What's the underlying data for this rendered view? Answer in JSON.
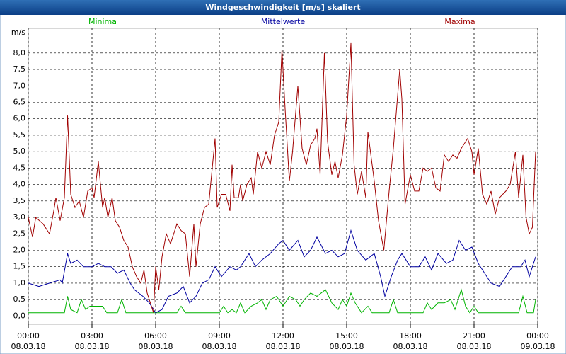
{
  "chart_data": {
    "type": "line",
    "title": "Windgeschwindigkeit [m/s] skaliert",
    "y_unit": "m/s",
    "xlim": [
      0,
      24
    ],
    "xticks": [
      {
        "value": 0,
        "label": "00:00",
        "date": "08.03.18"
      },
      {
        "value": 3,
        "label": "03:00",
        "date": "08.03.18"
      },
      {
        "value": 6,
        "label": "06:00",
        "date": "08.03.18"
      },
      {
        "value": 9,
        "label": "09:00",
        "date": "08.03.18"
      },
      {
        "value": 12,
        "label": "12:00",
        "date": "08.03.18"
      },
      {
        "value": 15,
        "label": "15:00",
        "date": "08.03.18"
      },
      {
        "value": 18,
        "label": "18:00",
        "date": "08.03.18"
      },
      {
        "value": 21,
        "label": "21:00",
        "date": "08.03.18"
      },
      {
        "value": 24,
        "label": "00:00",
        "date": "09.03.18"
      }
    ],
    "ylim": [
      -0.25,
      8.75
    ],
    "yticks": [
      {
        "value": 0,
        "label": "0,0"
      },
      {
        "value": 0.5,
        "label": "0,5"
      },
      {
        "value": 1,
        "label": "1,0"
      },
      {
        "value": 1.5,
        "label": "1,5"
      },
      {
        "value": 2,
        "label": "2,0"
      },
      {
        "value": 2.5,
        "label": "2,5"
      },
      {
        "value": 3,
        "label": "3,0"
      },
      {
        "value": 3.5,
        "label": "3,5"
      },
      {
        "value": 4,
        "label": "4,0"
      },
      {
        "value": 4.5,
        "label": "4,5"
      },
      {
        "value": 5,
        "label": "5,0"
      },
      {
        "value": 5.5,
        "label": "5,5"
      },
      {
        "value": 6,
        "label": "6,0"
      },
      {
        "value": 6.5,
        "label": "6,5"
      },
      {
        "value": 7,
        "label": "7,0"
      },
      {
        "value": 7.5,
        "label": "7,5"
      },
      {
        "value": 8,
        "label": "8,0"
      }
    ],
    "grid": true,
    "series": [
      {
        "name": "Minima",
        "color": "#00b400",
        "x": [
          0,
          1.7,
          1.85,
          2.0,
          2.3,
          2.5,
          2.7,
          2.9,
          3.5,
          3.7,
          4.2,
          4.4,
          4.6,
          7.0,
          7.2,
          7.4,
          9.0,
          9.2,
          9.4,
          9.6,
          9.8,
          10.0,
          10.2,
          10.5,
          10.8,
          11.0,
          11.2,
          11.4,
          11.7,
          12.0,
          12.3,
          12.6,
          12.8,
          13.0,
          13.3,
          13.6,
          14.0,
          14.3,
          14.6,
          14.8,
          15.0,
          15.2,
          15.4,
          15.7,
          16.0,
          16.2,
          17.0,
          17.2,
          17.4,
          18.6,
          18.8,
          19.0,
          19.3,
          19.6,
          19.9,
          20.1,
          20.4,
          20.6,
          20.8,
          21.0,
          21.2,
          23.1,
          23.3,
          23.5,
          23.8,
          23.9
        ],
        "values": [
          0.1,
          0.1,
          0.6,
          0.2,
          0.1,
          0.5,
          0.2,
          0.3,
          0.3,
          0.1,
          0.1,
          0.5,
          0.1,
          0.1,
          0.3,
          0.1,
          0.1,
          0.3,
          0.1,
          0.2,
          0.1,
          0.4,
          0.1,
          0.3,
          0.4,
          0.5,
          0.2,
          0.5,
          0.6,
          0.3,
          0.6,
          0.5,
          0.3,
          0.5,
          0.7,
          0.6,
          0.8,
          0.4,
          0.2,
          0.5,
          0.3,
          0.7,
          0.4,
          0.1,
          0.3,
          0.1,
          0.1,
          0.5,
          0.1,
          0.1,
          0.4,
          0.2,
          0.4,
          0.4,
          0.5,
          0.2,
          0.8,
          0.3,
          0.1,
          0.3,
          0.1,
          0.1,
          0.6,
          0.1,
          0.1,
          0.5
        ]
      },
      {
        "name": "Mittelwerte",
        "color": "#0000a0",
        "x": [
          0,
          0.5,
          1.0,
          1.5,
          1.6,
          1.85,
          2.0,
          2.3,
          2.6,
          3.0,
          3.3,
          3.6,
          3.9,
          4.2,
          4.5,
          4.8,
          5.0,
          5.4,
          5.7,
          6.0,
          6.3,
          6.6,
          7.0,
          7.3,
          7.6,
          7.9,
          8.2,
          8.5,
          8.8,
          9.1,
          9.5,
          9.8,
          10.0,
          10.4,
          10.7,
          11.0,
          11.4,
          11.8,
          12.0,
          12.3,
          12.7,
          13.0,
          13.3,
          13.6,
          14.0,
          14.3,
          14.6,
          14.9,
          15.2,
          15.5,
          15.9,
          16.3,
          16.6,
          16.8,
          17.1,
          17.4,
          17.6,
          18.0,
          18.4,
          18.7,
          19.0,
          19.3,
          19.7,
          20.0,
          20.3,
          20.6,
          20.9,
          21.2,
          21.5,
          21.8,
          22.2,
          22.5,
          22.8,
          23.2,
          23.4,
          23.6,
          23.9
        ],
        "values": [
          1.0,
          0.9,
          1.0,
          1.1,
          1.0,
          1.9,
          1.6,
          1.7,
          1.5,
          1.5,
          1.6,
          1.5,
          1.5,
          1.3,
          1.4,
          1.0,
          0.8,
          0.6,
          0.4,
          0.1,
          0.2,
          0.6,
          0.7,
          0.9,
          0.4,
          0.6,
          1.0,
          1.1,
          1.5,
          1.2,
          1.5,
          1.4,
          1.5,
          1.9,
          1.5,
          1.7,
          1.9,
          2.2,
          2.3,
          2.0,
          2.3,
          1.8,
          2.0,
          2.4,
          1.9,
          2.0,
          1.8,
          1.9,
          2.6,
          2.0,
          1.7,
          1.9,
          1.2,
          0.6,
          1.2,
          1.7,
          1.9,
          1.5,
          1.5,
          1.8,
          1.4,
          1.9,
          1.6,
          1.7,
          2.3,
          2.0,
          2.1,
          1.6,
          1.3,
          1.0,
          0.9,
          1.2,
          1.5,
          1.5,
          1.7,
          1.2,
          1.8
        ]
      },
      {
        "name": "Maxima",
        "color": "#a00000",
        "x": [
          0,
          0.2,
          0.35,
          0.7,
          1.0,
          1.2,
          1.3,
          1.5,
          1.7,
          1.85,
          2.0,
          2.2,
          2.4,
          2.6,
          2.8,
          3.0,
          3.1,
          3.3,
          3.5,
          3.6,
          3.75,
          3.95,
          4.1,
          4.3,
          4.5,
          4.7,
          4.9,
          5.1,
          5.3,
          5.45,
          5.6,
          5.9,
          6.0,
          6.15,
          6.3,
          6.5,
          6.7,
          7.0,
          7.2,
          7.4,
          7.6,
          7.8,
          7.9,
          8.1,
          8.3,
          8.5,
          8.8,
          8.9,
          9.1,
          9.3,
          9.5,
          9.6,
          9.7,
          9.9,
          10.0,
          10.1,
          10.3,
          10.5,
          10.6,
          10.8,
          11.0,
          11.2,
          11.4,
          11.6,
          11.8,
          11.95,
          12.1,
          12.3,
          12.45,
          12.7,
          12.9,
          13.1,
          13.3,
          13.5,
          13.6,
          13.75,
          13.95,
          14.1,
          14.3,
          14.45,
          14.6,
          14.8,
          15.0,
          15.2,
          15.35,
          15.5,
          15.7,
          15.9,
          16.0,
          16.3,
          16.5,
          16.75,
          17.0,
          17.2,
          17.5,
          17.6,
          17.75,
          18.0,
          18.2,
          18.4,
          18.6,
          18.8,
          19.0,
          19.2,
          19.4,
          19.6,
          19.8,
          20.0,
          20.2,
          20.4,
          20.7,
          20.9,
          21.0,
          21.2,
          21.4,
          21.6,
          21.8,
          22.0,
          22.2,
          22.5,
          22.7,
          22.95,
          23.1,
          23.3,
          23.45,
          23.6,
          23.75,
          23.9
        ],
        "values": [
          3.0,
          2.4,
          3.0,
          2.8,
          2.5,
          3.2,
          3.6,
          2.9,
          3.6,
          6.1,
          3.7,
          3.3,
          3.5,
          3.0,
          3.8,
          3.9,
          3.6,
          4.7,
          3.3,
          3.6,
          3.0,
          3.6,
          2.9,
          2.7,
          2.3,
          2.1,
          1.5,
          1.2,
          1.0,
          1.4,
          0.7,
          0.1,
          1.5,
          0.8,
          1.8,
          2.5,
          2.2,
          2.8,
          2.6,
          2.5,
          1.2,
          2.8,
          1.5,
          2.8,
          3.3,
          3.4,
          5.4,
          3.3,
          3.7,
          3.7,
          3.2,
          4.6,
          3.6,
          3.6,
          4.0,
          3.5,
          4.0,
          4.2,
          3.7,
          5.0,
          4.5,
          5.0,
          4.6,
          5.5,
          5.9,
          8.1,
          6.3,
          4.1,
          5.0,
          7.0,
          5.1,
          4.6,
          5.2,
          5.4,
          5.7,
          4.3,
          8.0,
          5.3,
          4.3,
          4.7,
          4.2,
          4.9,
          6.1,
          8.3,
          4.6,
          3.7,
          4.4,
          3.6,
          5.6,
          4.1,
          2.9,
          2.0,
          3.8,
          5.1,
          7.5,
          6.6,
          3.4,
          4.3,
          3.8,
          3.8,
          4.5,
          4.4,
          4.5,
          3.9,
          3.8,
          4.9,
          4.7,
          4.9,
          4.8,
          5.1,
          5.4,
          5.0,
          4.3,
          5.1,
          3.7,
          3.4,
          3.8,
          3.1,
          3.6,
          3.8,
          4.0,
          5.0,
          3.6,
          4.9,
          3.0,
          2.5,
          2.7,
          5.0
        ]
      }
    ]
  }
}
